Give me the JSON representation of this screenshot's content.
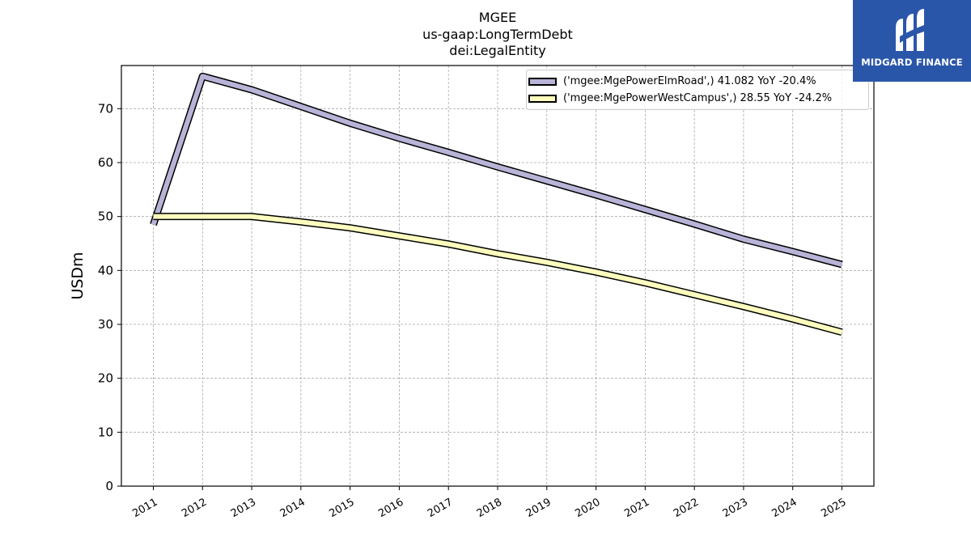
{
  "title_lines": [
    "MGEE",
    "us-gaap:LongTermDebt",
    "dei:LegalEntity"
  ],
  "logo": {
    "text": "MIDGARD FINANCE",
    "icon": "midgard-finance-logo-icon",
    "color": "#2a56aa"
  },
  "chart_data": {
    "type": "line",
    "title": "MGEE\nus-gaap:LongTermDebt\ndei:LegalEntity",
    "xlabel": "",
    "ylabel": "USDm",
    "x": [
      2011,
      2012,
      2013,
      2014,
      2015,
      2016,
      2017,
      2018,
      2019,
      2020,
      2021,
      2022,
      2023,
      2024,
      2025
    ],
    "xlim": [
      2010.35,
      2025.65
    ],
    "ylim": [
      0,
      78
    ],
    "yticks": [
      0,
      10,
      20,
      30,
      40,
      50,
      60,
      70
    ],
    "grid": true,
    "legend_position": "upper right",
    "series": [
      {
        "name": "('mgee:MgePowerElmRoad',) 41.082 YoY -20.4%",
        "color": "#b8b4d8",
        "values": [
          48.5,
          76.0,
          73.5,
          70.4,
          67.3,
          64.5,
          61.9,
          59.2,
          56.6,
          54.0,
          51.3,
          48.6,
          45.8,
          43.5,
          41.1
        ]
      },
      {
        "name": "('mgee:MgePowerWestCampus',) 28.55 YoY -24.2%",
        "color": "#fdfdbf",
        "values": [
          50.0,
          50.0,
          50.0,
          49.0,
          47.9,
          46.4,
          44.9,
          43.1,
          41.5,
          39.7,
          37.7,
          35.5,
          33.3,
          31.0,
          28.55
        ]
      }
    ]
  }
}
